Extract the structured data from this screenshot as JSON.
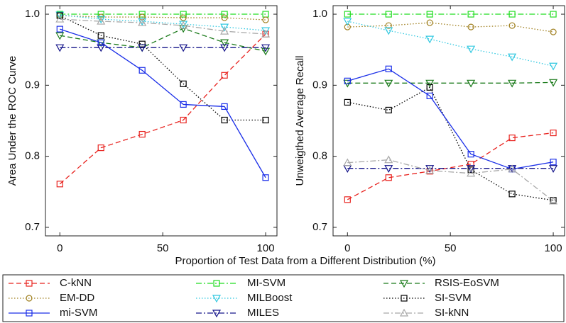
{
  "chart_data": [
    {
      "type": "line",
      "ylabel": "Area Under the ROC Curve",
      "xlabel": "Proportion of Test Data from a Different Distribution (%)",
      "x": [
        0,
        20,
        40,
        60,
        80,
        100
      ],
      "xlim": [
        -7,
        105.5
      ],
      "xticks": [
        0,
        50,
        100
      ],
      "ylim": [
        0.688,
        1.012
      ],
      "yticks": [
        0.7,
        0.8,
        0.9,
        {
          "value": 1,
          "label": "1.0"
        }
      ],
      "series": [
        {
          "name": "C-kNN",
          "color": "#e8231f",
          "linestyle": "dashed",
          "marker": "square",
          "values": [
            0.761,
            0.812,
            0.831,
            0.851,
            0.914,
            0.972
          ]
        },
        {
          "name": "MI-SVM",
          "color": "#22dd22",
          "linestyle": "dashdot",
          "marker": "square",
          "values": [
            1.0,
            1.0,
            1.0,
            1.0,
            1.0,
            1.0
          ]
        },
        {
          "name": "RSIS-EoSVM",
          "color": "#1a7a1a",
          "linestyle": "dashed",
          "marker": "triangle-down",
          "values": [
            0.97,
            0.96,
            0.953,
            0.98,
            0.96,
            0.948
          ]
        },
        {
          "name": "EM-DD",
          "color": "#a08020",
          "linestyle": "dotted",
          "marker": "circle",
          "values": [
            0.998,
            0.996,
            0.996,
            0.995,
            0.995,
            0.992
          ]
        },
        {
          "name": "MILBoost",
          "color": "#30c8e0",
          "linestyle": "dotted",
          "marker": "triangle-down",
          "values": [
            0.999,
            0.993,
            0.99,
            0.986,
            0.982,
            0.977
          ]
        },
        {
          "name": "SI-SVM",
          "color": "#000000",
          "linestyle": "dotted",
          "marker": "square",
          "values": [
            0.998,
            0.97,
            0.958,
            0.902,
            0.851,
            0.851
          ]
        },
        {
          "name": "mi-SVM",
          "color": "#1a2ee8",
          "linestyle": "solid",
          "marker": "square",
          "values": [
            0.979,
            0.96,
            0.921,
            0.873,
            0.87,
            0.77
          ]
        },
        {
          "name": "MILES",
          "color": "#14148a",
          "linestyle": "dashdot",
          "marker": "triangle-down",
          "values": [
            0.953,
            0.953,
            0.953,
            0.953,
            0.953,
            0.953
          ]
        },
        {
          "name": "SI-kNN",
          "color": "#a8a8a8",
          "linestyle": "dashdot",
          "marker": "triangle-up",
          "values": [
            0.993,
            0.99,
            0.988,
            0.984,
            0.976,
            0.972
          ]
        }
      ]
    },
    {
      "type": "line",
      "ylabel": "Unweigthed Average Recall",
      "x": [
        0,
        20,
        40,
        60,
        80,
        100
      ],
      "xlim": [
        -7,
        105.5
      ],
      "xticks": [
        0,
        50,
        100
      ],
      "ylim": [
        0.688,
        1.012
      ],
      "yticks": [
        0.7,
        0.8,
        0.9,
        {
          "value": 1,
          "label": "1.0"
        }
      ],
      "series": [
        {
          "color": "#e8231f",
          "linestyle": "dashed",
          "marker": "square",
          "values": [
            0.739,
            0.77,
            0.779,
            0.789,
            0.826,
            0.833
          ]
        },
        {
          "color": "#22dd22",
          "linestyle": "dashdot",
          "marker": "square",
          "values": [
            1.0,
            1.0,
            1.0,
            1.0,
            1.0,
            1.0
          ]
        },
        {
          "color": "#1a7a1a",
          "linestyle": "dashed",
          "marker": "triangle-down",
          "values": [
            0.903,
            0.903,
            0.903,
            0.903,
            0.903,
            0.904
          ]
        },
        {
          "color": "#a08020",
          "linestyle": "dotted",
          "marker": "circle",
          "values": [
            0.982,
            0.984,
            0.988,
            0.982,
            0.984,
            0.975
          ]
        },
        {
          "color": "#30c8e0",
          "linestyle": "dotted",
          "marker": "triangle-down",
          "values": [
            0.99,
            0.977,
            0.965,
            0.951,
            0.94,
            0.927
          ]
        },
        {
          "color": "#000000",
          "linestyle": "dotted",
          "marker": "square",
          "values": [
            0.876,
            0.865,
            0.897,
            0.781,
            0.747,
            0.738
          ]
        },
        {
          "color": "#1a2ee8",
          "linestyle": "solid",
          "marker": "square",
          "values": [
            0.906,
            0.923,
            0.885,
            0.803,
            0.782,
            0.792
          ]
        },
        {
          "color": "#14148a",
          "linestyle": "dashdot",
          "marker": "triangle-down",
          "values": [
            0.783,
            0.783,
            0.783,
            0.783,
            0.783,
            0.783
          ]
        },
        {
          "color": "#a8a8a8",
          "linestyle": "dashdot",
          "marker": "triangle-up",
          "values": [
            0.791,
            0.795,
            0.78,
            0.776,
            0.782,
            0.737
          ]
        }
      ]
    }
  ]
}
